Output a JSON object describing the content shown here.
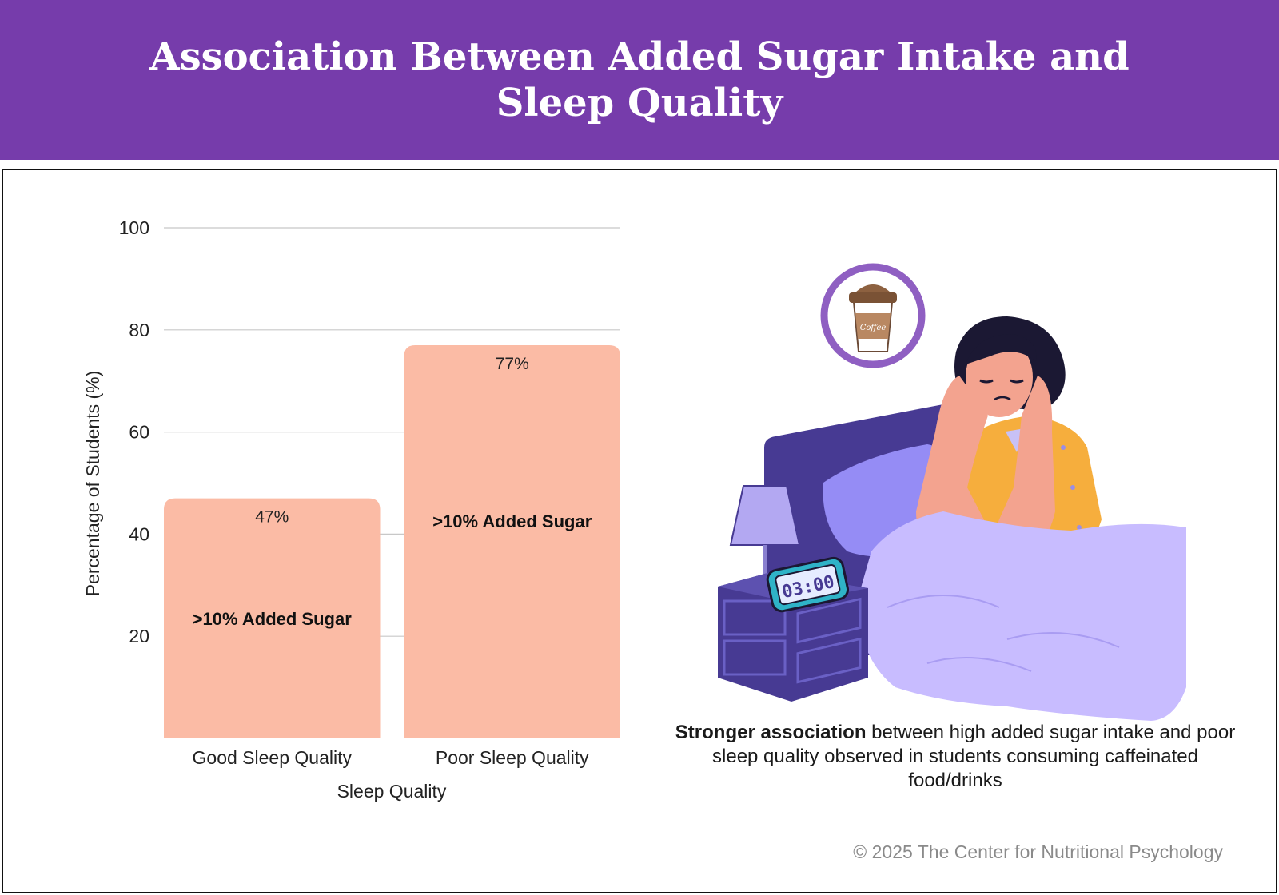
{
  "header": {
    "title": "Association Between Added Sugar Intake and Sleep Quality"
  },
  "chart_data": {
    "type": "bar",
    "categories": [
      "Good Sleep Quality",
      "Poor Sleep Quality"
    ],
    "values": [
      47,
      77
    ],
    "value_labels": [
      "47%",
      "77%"
    ],
    "bar_labels": [
      ">10% Added Sugar",
      ">10% Added Sugar"
    ],
    "xlabel": "Sleep Quality",
    "ylabel": "Percentage of Students (%)",
    "ylim": [
      0,
      100
    ],
    "yticks": [
      20,
      40,
      60,
      80,
      100
    ],
    "grid": true,
    "bar_color": "#fbbba5"
  },
  "illustration": {
    "cup_text": "Coffee",
    "clock_text": "03:00"
  },
  "caption": {
    "bold": "Stronger association",
    "rest": " between high added sugar intake and poor sleep quality observed in students consuming caffeinated food/drinks"
  },
  "footer": {
    "copyright": "© 2025 The Center for Nutritional Psychology"
  },
  "colors": {
    "header_bg": "#763cab",
    "bar": "#fbbba5",
    "accent_purple": "#8f5fc2"
  }
}
